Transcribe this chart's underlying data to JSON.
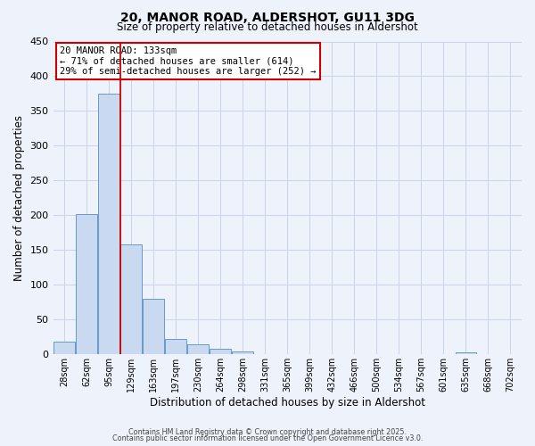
{
  "title": "20, MANOR ROAD, ALDERSHOT, GU11 3DG",
  "subtitle": "Size of property relative to detached houses in Aldershot",
  "xlabel": "Distribution of detached houses by size in Aldershot",
  "ylabel": "Number of detached properties",
  "bin_labels": [
    "28sqm",
    "62sqm",
    "95sqm",
    "129sqm",
    "163sqm",
    "197sqm",
    "230sqm",
    "264sqm",
    "298sqm",
    "331sqm",
    "365sqm",
    "399sqm",
    "432sqm",
    "466sqm",
    "500sqm",
    "534sqm",
    "567sqm",
    "601sqm",
    "635sqm",
    "668sqm",
    "702sqm"
  ],
  "bar_values": [
    18,
    202,
    375,
    158,
    80,
    21,
    14,
    7,
    3,
    0,
    0,
    0,
    0,
    0,
    0,
    0,
    0,
    0,
    2,
    0,
    0
  ],
  "bar_color": "#c9d9f0",
  "bar_edge_color": "#6699cc",
  "vline_x": 2.5,
  "vline_color": "#cc0000",
  "ylim": [
    0,
    450
  ],
  "yticks": [
    0,
    50,
    100,
    150,
    200,
    250,
    300,
    350,
    400,
    450
  ],
  "annotation_title": "20 MANOR ROAD: 133sqm",
  "annotation_line1": "← 71% of detached houses are smaller (614)",
  "annotation_line2": "29% of semi-detached houses are larger (252) →",
  "annotation_box_color": "#ffffff",
  "annotation_box_edge_color": "#cc0000",
  "footer1": "Contains HM Land Registry data © Crown copyright and database right 2025.",
  "footer2": "Contains public sector information licensed under the Open Government Licence v3.0.",
  "background_color": "#eef2fa",
  "grid_color": "#c8d4e8"
}
